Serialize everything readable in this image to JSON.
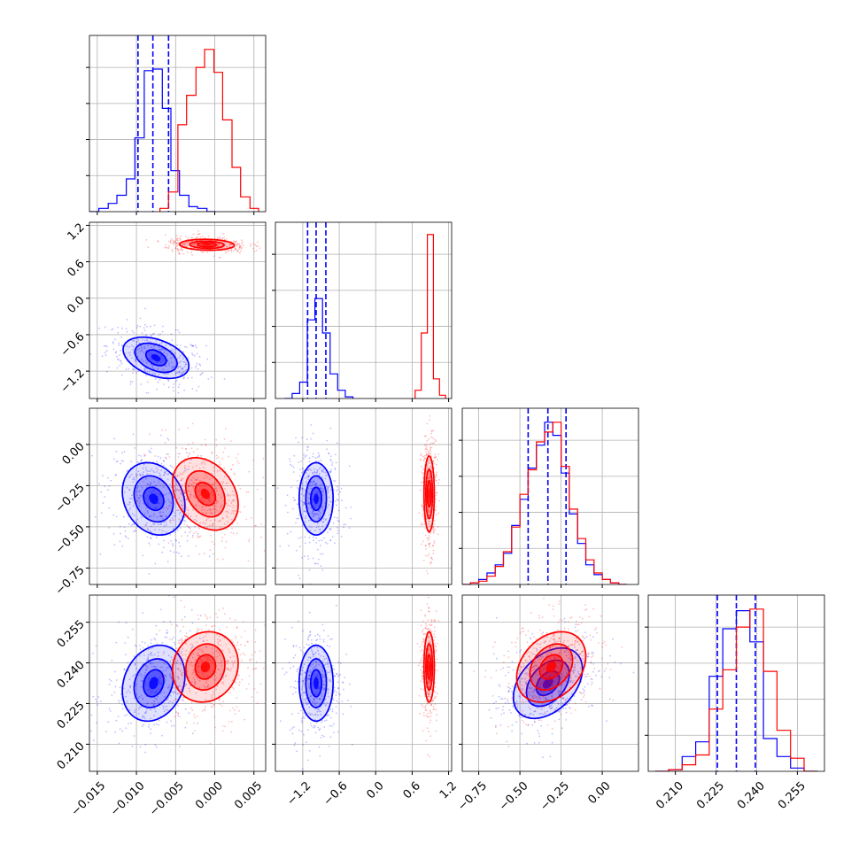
{
  "chart_data": {
    "type": "corner",
    "grid": true,
    "colors": {
      "series_a": "#0000ff",
      "series_b": "#ff0000"
    },
    "parameters": [
      {
        "range": [
          -0.016,
          0.0065
        ],
        "ticks": [
          -0.015,
          -0.01,
          -0.005,
          0.0,
          0.005
        ],
        "tick_labels": [
          "−0.015",
          "−0.010",
          "−0.005",
          "0.000",
          "0.005"
        ]
      },
      {
        "range": [
          -1.65,
          1.25
        ],
        "ticks": [
          -1.2,
          -0.6,
          0.0,
          0.6,
          1.2
        ],
        "tick_labels": [
          "−1.2",
          "−0.6",
          "0.0",
          "0.6",
          "1.2"
        ]
      },
      {
        "range": [
          -0.85,
          0.22
        ],
        "ticks": [
          -0.75,
          -0.5,
          -0.25,
          0.0
        ],
        "tick_labels": [
          "−0.75",
          "−0.50",
          "−0.25",
          "0.00"
        ]
      },
      {
        "range": [
          0.2,
          0.265
        ],
        "ticks": [
          0.21,
          0.225,
          0.24,
          0.255
        ],
        "tick_labels": [
          "0.210",
          "0.225",
          "0.240",
          "0.255"
        ]
      }
    ],
    "series": [
      {
        "name": "",
        "color": "#0000ff",
        "quantiles": [
          [
            -0.0098,
            -0.0079,
            -0.0059
          ],
          [
            -1.12,
            -0.98,
            -0.82
          ],
          [
            -0.45,
            -0.33,
            -0.22
          ],
          [
            0.2255,
            0.2325,
            0.2395
          ]
        ],
        "histograms": [
          {
            "bin_edges": [
              -0.016,
              -0.0148,
              -0.0136,
              -0.0125,
              -0.0113,
              -0.0102,
              -0.009,
              -0.0079,
              -0.0067,
              -0.0056,
              -0.0045,
              -0.0033,
              -0.0022,
              -0.001,
              0.0001
            ],
            "counts": [
              0.0,
              0.02,
              0.05,
              0.1,
              0.2,
              0.45,
              0.86,
              0.87,
              0.63,
              0.25,
              0.1,
              0.03,
              0.02,
              0.0
            ]
          },
          {
            "bin_edges": [
              -1.5,
              -1.375,
              -1.25,
              -1.125,
              -1.0,
              -0.875,
              -0.75,
              -0.625,
              -0.5,
              -0.375
            ],
            "counts": [
              0.0,
              0.03,
              0.1,
              0.48,
              0.61,
              0.4,
              0.15,
              0.05,
              0.01
            ]
          },
          {
            "bin_edges": [
              -0.85,
              -0.8,
              -0.75,
              -0.7,
              -0.65,
              -0.6,
              -0.55,
              -0.5,
              -0.45,
              -0.4,
              -0.35,
              -0.3,
              -0.25,
              -0.2,
              -0.15,
              -0.1,
              -0.05,
              0.0,
              0.05,
              0.1,
              0.15
            ],
            "counts": [
              0.0,
              0.01,
              0.03,
              0.07,
              0.12,
              0.19,
              0.36,
              0.52,
              0.71,
              0.85,
              0.99,
              0.91,
              0.68,
              0.43,
              0.25,
              0.12,
              0.06,
              0.03,
              0.01,
              0.0
            ]
          },
          {
            "bin_edges": [
              0.2025,
              0.2075,
              0.2125,
              0.2175,
              0.2225,
              0.2275,
              0.2325,
              0.2375,
              0.2425,
              0.2475,
              0.2525,
              0.2575,
              0.2625
            ],
            "counts": [
              0.0,
              0.01,
              0.09,
              0.18,
              0.58,
              0.87,
              0.98,
              0.79,
              0.2,
              0.09,
              0.02,
              0.0
            ]
          }
        ],
        "contours": [
          {
            "p": [
              1,
              0
            ],
            "cx": -0.0075,
            "cy": -0.98,
            "levels": [
              [
                0.0013,
                0.13,
                -0.4
              ],
              [
                0.0027,
                0.24,
                -0.4
              ],
              [
                0.0042,
                0.34,
                -0.4
              ]
            ]
          },
          {
            "p": [
              2,
              0
            ],
            "cx": -0.0078,
            "cy": -0.33,
            "levels": [
              [
                0.0013,
                0.07,
                -0.2
              ],
              [
                0.0025,
                0.14,
                -0.2
              ],
              [
                0.004,
                0.22,
                -0.2
              ]
            ]
          },
          {
            "p": [
              2,
              1
            ],
            "cx": -0.98,
            "cy": -0.33,
            "levels": [
              [
                0.09,
                0.07,
                0.0
              ],
              [
                0.17,
                0.14,
                0.0
              ],
              [
                0.28,
                0.22,
                0.0
              ]
            ]
          },
          {
            "p": [
              3,
              0
            ],
            "cx": -0.0078,
            "cy": 0.2325,
            "levels": [
              [
                0.0013,
                0.005,
                0.2
              ],
              [
                0.0025,
                0.009,
                0.2
              ],
              [
                0.004,
                0.014,
                0.2
              ]
            ]
          },
          {
            "p": [
              3,
              1
            ],
            "cx": -0.98,
            "cy": 0.2325,
            "levels": [
              [
                0.09,
                0.005,
                0.0
              ],
              [
                0.17,
                0.009,
                0.0
              ],
              [
                0.28,
                0.014,
                0.0
              ]
            ]
          },
          {
            "p": [
              3,
              2
            ],
            "cx": -0.33,
            "cy": 0.2325,
            "levels": [
              [
                0.07,
                0.0045,
                0.4
              ],
              [
                0.13,
                0.0085,
                0.4
              ],
              [
                0.21,
                0.013,
                0.4
              ]
            ]
          }
        ]
      },
      {
        "name": "",
        "color": "#ff0000",
        "histograms": [
          {
            "bin_edges": [
              -0.007,
              -0.0059,
              -0.0047,
              -0.0036,
              -0.0024,
              -0.0013,
              -0.0001,
              0.001,
              0.0022,
              0.0033,
              0.0045,
              0.0056
            ],
            "counts": [
              0.02,
              0.12,
              0.53,
              0.71,
              0.88,
              0.99,
              0.85,
              0.56,
              0.27,
              0.09,
              0.02
            ]
          },
          {
            "bin_edges": [
              0.65,
              0.75,
              0.85,
              0.95,
              1.05,
              1.15
            ],
            "counts": [
              0.05,
              0.4,
              1.0,
              0.12,
              0.02
            ]
          },
          {
            "bin_edges": [
              -0.85,
              -0.8,
              -0.75,
              -0.7,
              -0.65,
              -0.6,
              -0.55,
              -0.5,
              -0.45,
              -0.4,
              -0.35,
              -0.3,
              -0.25,
              -0.2,
              -0.15,
              -0.1,
              -0.05,
              0.0,
              0.05,
              0.1,
              0.15
            ],
            "counts": [
              0.0,
              0.01,
              0.02,
              0.05,
              0.11,
              0.2,
              0.35,
              0.55,
              0.7,
              0.87,
              0.93,
              0.99,
              0.72,
              0.46,
              0.28,
              0.15,
              0.07,
              0.03,
              0.01,
              0.0
            ]
          },
          {
            "bin_edges": [
              0.2025,
              0.2075,
              0.2125,
              0.2175,
              0.2225,
              0.2275,
              0.2325,
              0.2375,
              0.2425,
              0.2475,
              0.2525,
              0.2575,
              0.2625
            ],
            "counts": [
              0.0,
              0.01,
              0.04,
              0.1,
              0.38,
              0.62,
              0.88,
              0.99,
              0.61,
              0.25,
              0.08,
              0.0
            ]
          }
        ],
        "contours": [
          {
            "p": [
              1,
              0
            ],
            "cx": -0.001,
            "cy": 0.88,
            "levels": [
              [
                0.0012,
                0.035,
                -0.1
              ],
              [
                0.0022,
                0.06,
                -0.1
              ],
              [
                0.0035,
                0.09,
                -0.1
              ]
            ]
          },
          {
            "p": [
              2,
              0
            ],
            "cx": -0.0012,
            "cy": -0.3,
            "levels": [
              [
                0.0013,
                0.07,
                -0.3
              ],
              [
                0.0025,
                0.14,
                -0.3
              ],
              [
                0.0042,
                0.22,
                -0.3
              ]
            ]
          },
          {
            "p": [
              2,
              1
            ],
            "cx": 0.88,
            "cy": -0.3,
            "levels": [
              [
                0.03,
                0.08,
                0.0
              ],
              [
                0.055,
                0.15,
                0.0
              ],
              [
                0.085,
                0.23,
                0.0
              ]
            ]
          },
          {
            "p": [
              3,
              0
            ],
            "cx": -0.0012,
            "cy": 0.2385,
            "levels": [
              [
                0.0013,
                0.0045,
                0.1
              ],
              [
                0.0025,
                0.0085,
                0.1
              ],
              [
                0.0042,
                0.013,
                0.1
              ]
            ]
          },
          {
            "p": [
              3,
              1
            ],
            "cx": 0.88,
            "cy": 0.2385,
            "levels": [
              [
                0.03,
                0.0045,
                0.0
              ],
              [
                0.055,
                0.0085,
                0.0
              ],
              [
                0.085,
                0.013,
                0.0
              ]
            ]
          },
          {
            "p": [
              3,
              2
            ],
            "cx": -0.31,
            "cy": 0.2385,
            "levels": [
              [
                0.07,
                0.0045,
                0.3
              ],
              [
                0.13,
                0.0085,
                0.3
              ],
              [
                0.21,
                0.013,
                0.3
              ]
            ]
          }
        ]
      }
    ]
  }
}
